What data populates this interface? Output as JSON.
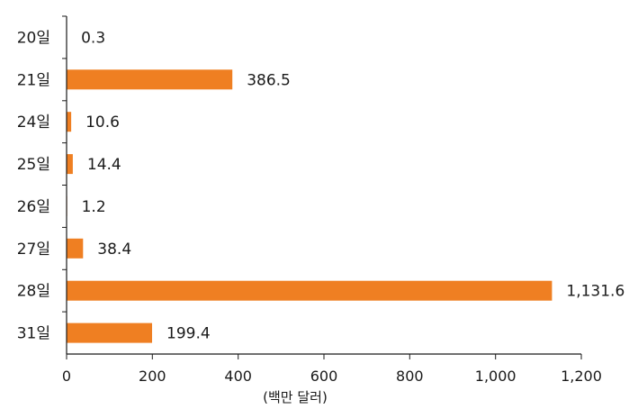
{
  "chart_data": {
    "type": "bar",
    "orientation": "horizontal",
    "categories": [
      "20일",
      "21일",
      "24일",
      "25일",
      "26일",
      "27일",
      "28일",
      "31일"
    ],
    "values": [
      0.3,
      386.5,
      10.6,
      14.4,
      1.2,
      38.4,
      1131.6,
      199.4
    ],
    "value_labels": [
      "0.3",
      "386.5",
      "10.6",
      "14.4",
      "1.2",
      "38.4",
      "1,131.6",
      "199.4"
    ],
    "xlim": [
      0,
      1200
    ],
    "x_ticks": [
      0,
      200,
      400,
      600,
      800,
      1000,
      1200
    ],
    "x_tick_labels": [
      "0",
      "200",
      "400",
      "600",
      "800",
      "1,000",
      "1,200"
    ],
    "xlabel": "(백만 달러)",
    "title": "",
    "grid": false,
    "legend": "none",
    "bar_color": "#ef7f22",
    "axis_color": "#1a1a1a"
  }
}
